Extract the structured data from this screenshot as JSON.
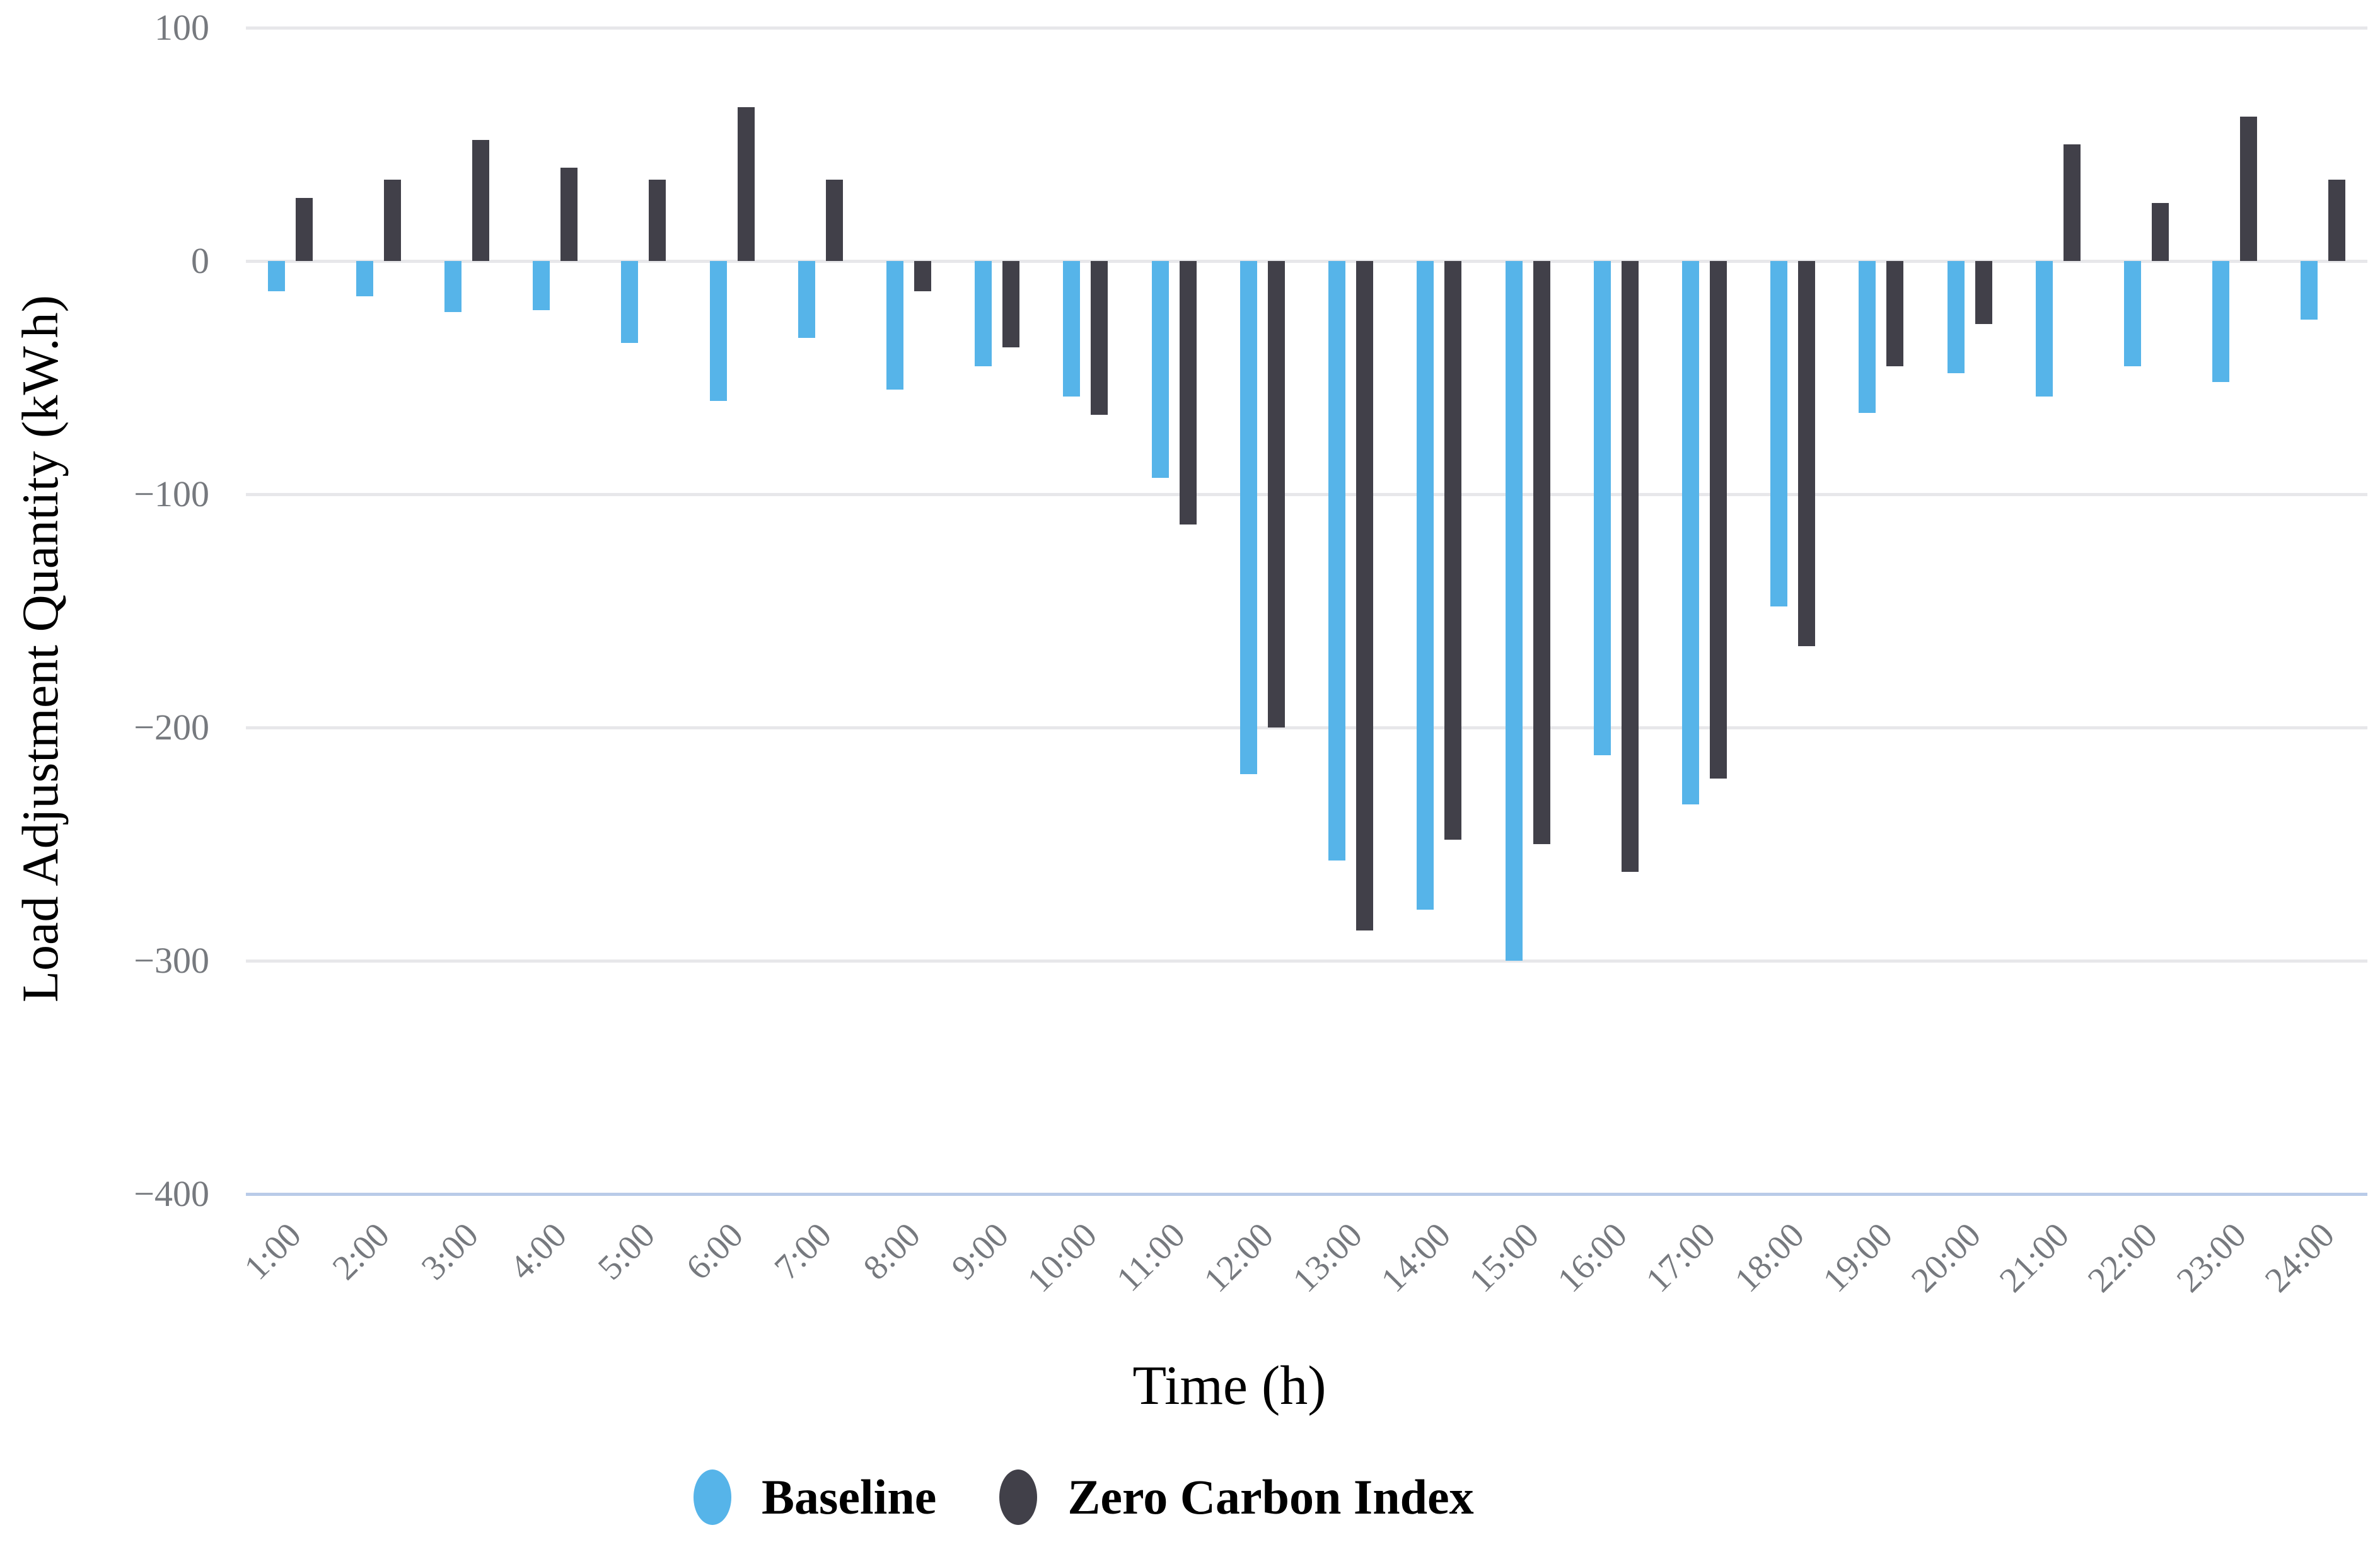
{
  "chart_data": {
    "type": "bar",
    "title": "",
    "xlabel": "Time (h)",
    "ylabel": "Load Adjustment Quantity (kW.h)",
    "categories": [
      "1:00",
      "2:00",
      "3:00",
      "4:00",
      "5:00",
      "6:00",
      "7:00",
      "8:00",
      "9:00",
      "10:00",
      "11:00",
      "12:00",
      "13:00",
      "14:00",
      "15:00",
      "16:00",
      "17:00",
      "18:00",
      "19:00",
      "20:00",
      "21:00",
      "22:00",
      "23:00",
      "24:00"
    ],
    "series": [
      {
        "name": "Baseline",
        "color": "#56b4e9",
        "values": [
          -13,
          -15,
          -22,
          -21,
          -35,
          -60,
          -33,
          -55,
          -45,
          -58,
          -93,
          -220,
          -257,
          -278,
          -300,
          -212,
          -233,
          -148,
          -65,
          -48,
          -58,
          -45,
          -52,
          -25
        ]
      },
      {
        "name": "Zero Carbon Index",
        "color": "#414049",
        "values": [
          27,
          35,
          52,
          40,
          35,
          66,
          35,
          -13,
          -37,
          -66,
          -113,
          -200,
          -287,
          -248,
          -250,
          -262,
          -222,
          -165,
          -45,
          -27,
          50,
          25,
          62,
          35
        ]
      }
    ],
    "ylim": [
      -400,
      100
    ],
    "y_tick_values": [
      100,
      0,
      -100,
      -200,
      -300,
      -400
    ],
    "y_tick_labels": [
      "100",
      "0",
      "−100",
      "−200",
      "−300",
      "−400"
    ],
    "grid": true,
    "legend_position": "bottom"
  },
  "colors": {
    "baseline": "#56b4e9",
    "zero_carbon_index": "#414049",
    "gridline": "#e7e7ea",
    "axis_line": "#b9cbe8",
    "tick_label": "#76797e",
    "text": "#000000",
    "background": "#ffffff"
  }
}
